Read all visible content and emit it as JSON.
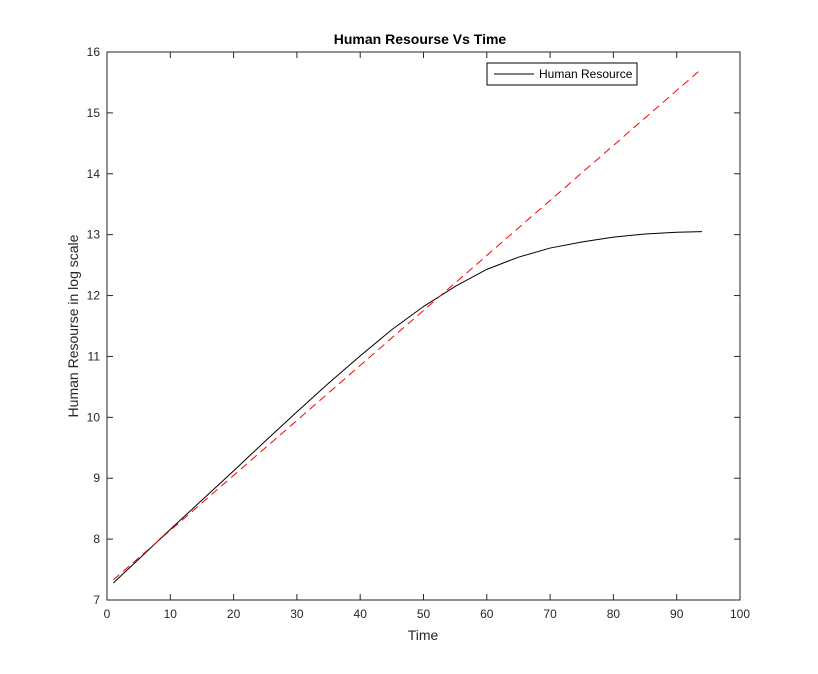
{
  "chart_data": {
    "type": "line",
    "title": "Human Resourse Vs Time",
    "xlabel": "Time",
    "ylabel": "Human Resourse in log scale",
    "xlim": [
      0,
      100
    ],
    "ylim": [
      7,
      16
    ],
    "xticks": [
      0,
      10,
      20,
      30,
      40,
      50,
      60,
      70,
      80,
      90,
      100
    ],
    "yticks": [
      7,
      8,
      9,
      10,
      11,
      12,
      13,
      14,
      15,
      16
    ],
    "grid": false,
    "legend": {
      "placement": "top-right",
      "entries": [
        "Human Resource"
      ]
    },
    "series": [
      {
        "name": "Human Resource",
        "color": "#000000",
        "style": "solid",
        "x": [
          1,
          5,
          10,
          15,
          20,
          25,
          30,
          35,
          40,
          45,
          50,
          55,
          60,
          65,
          70,
          75,
          80,
          85,
          90,
          94
        ],
        "y": [
          7.28,
          7.67,
          8.16,
          8.64,
          9.12,
          9.61,
          10.09,
          10.56,
          11.01,
          11.44,
          11.82,
          12.15,
          12.43,
          12.63,
          12.78,
          12.88,
          12.96,
          13.01,
          13.04,
          13.05
        ]
      },
      {
        "color": "#ff0000",
        "style": "dashed",
        "x": [
          1,
          94
        ],
        "y": [
          7.33,
          15.73
        ]
      }
    ]
  }
}
